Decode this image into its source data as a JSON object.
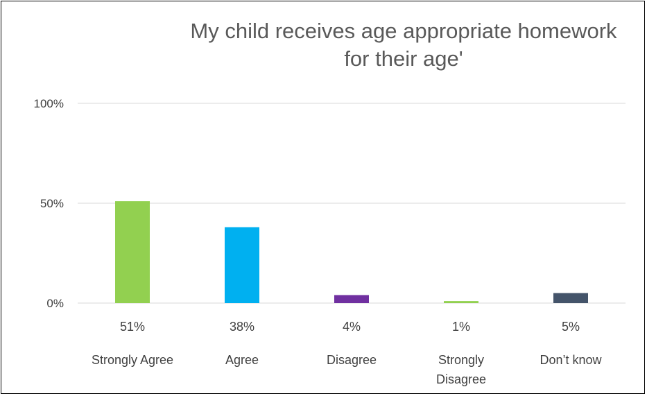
{
  "chart_data": {
    "type": "bar",
    "title_lines": [
      "My child receives age appropriate homework",
      "for their age'"
    ],
    "categories": [
      [
        "Strongly Agree"
      ],
      [
        "Agree"
      ],
      [
        "Disagree"
      ],
      [
        "Strongly",
        "Disagree"
      ],
      [
        "Don’t know"
      ]
    ],
    "values": [
      51,
      38,
      4,
      1,
      5
    ],
    "data_labels": [
      "51%",
      "38%",
      "4%",
      "1%",
      "5%"
    ],
    "colors": [
      "#92d050",
      "#00b0f0",
      "#7030a0",
      "#92d050",
      "#44546a"
    ],
    "yticks": [
      {
        "value": 0,
        "label": "0%"
      },
      {
        "value": 50,
        "label": "50%"
      },
      {
        "value": 100,
        "label": "100%"
      }
    ],
    "ylim": [
      0,
      100
    ],
    "grid": true,
    "gridline_color": "#d9d9d9",
    "legend": "none"
  }
}
